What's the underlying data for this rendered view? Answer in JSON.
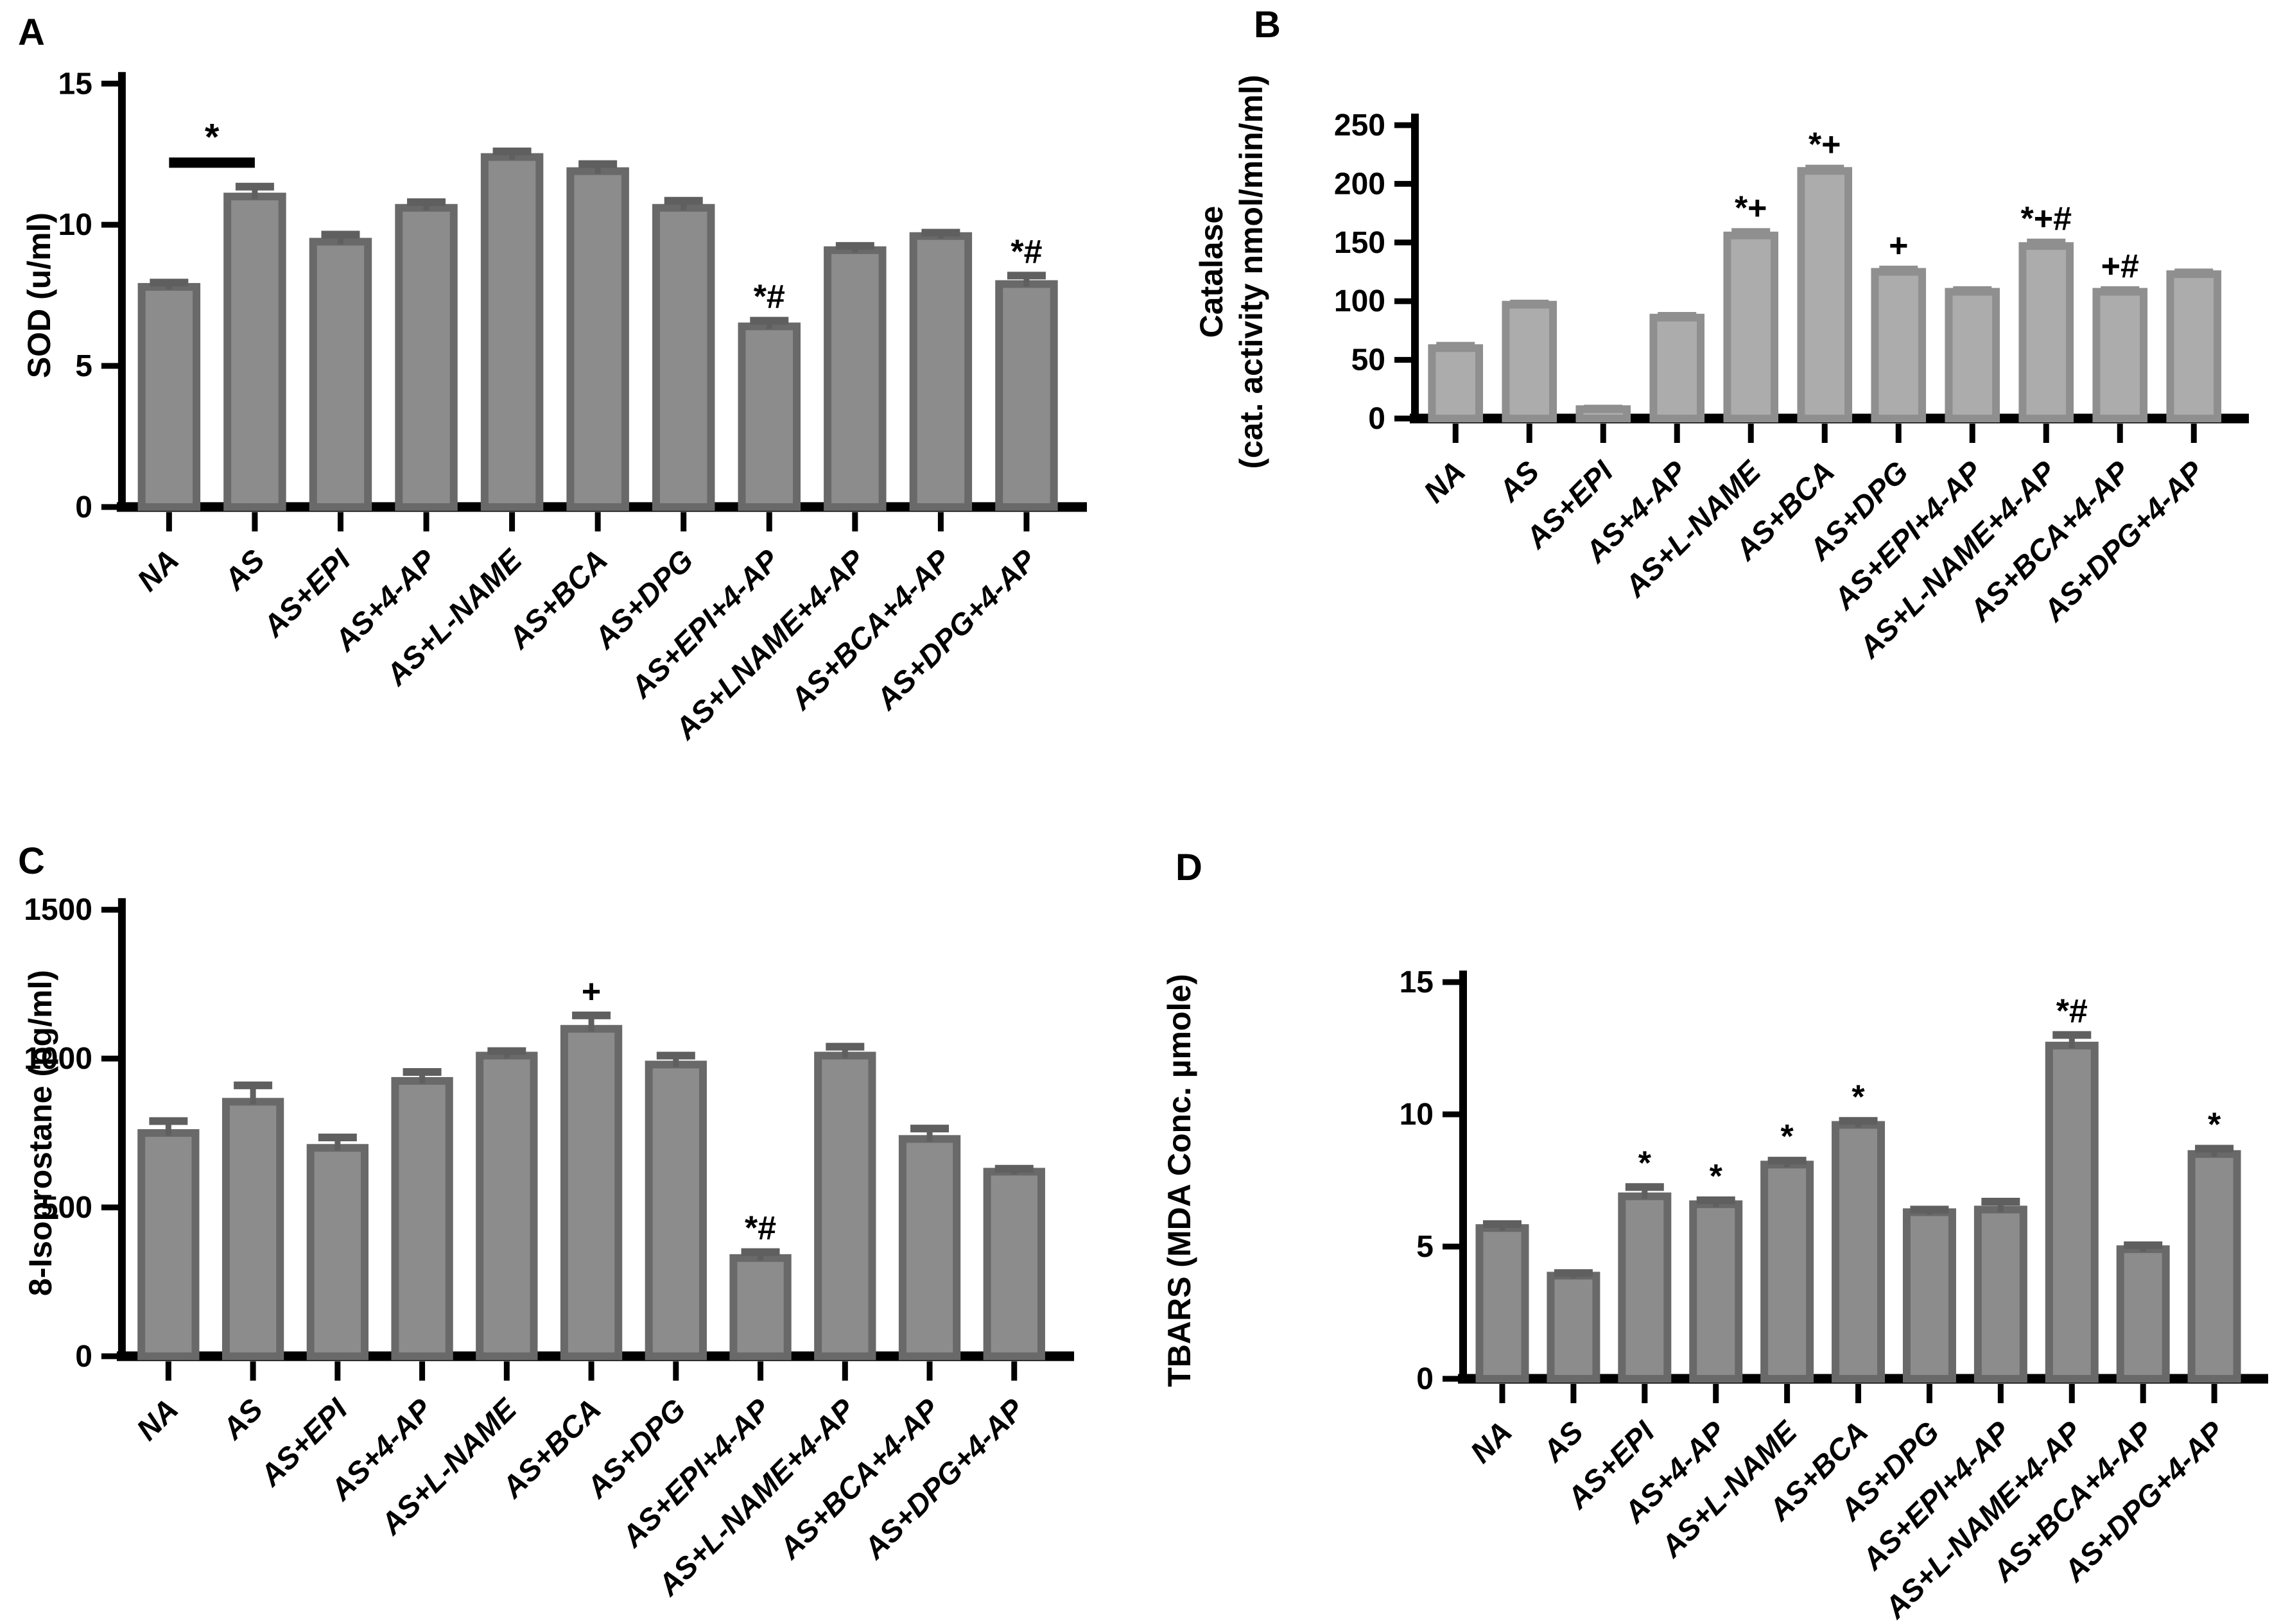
{
  "figure_background": "#ffffff",
  "axis_color": "#000000",
  "chart_data": [
    {
      "type": "bar",
      "panel": "A",
      "ylabel_lines": [
        "SOD (u/ml)"
      ],
      "categories": [
        "NA",
        "AS",
        "AS+EPI",
        "AS+4-AP",
        "AS+L-NAME",
        "AS+BCA",
        "AS+DPG",
        "AS+EPI+4-AP",
        "AS+LNAME+4-AP",
        "AS+BCA+4-AP",
        "AS+DPG+4-AP"
      ],
      "values": [
        7.8,
        11.0,
        9.4,
        10.6,
        12.4,
        11.9,
        10.6,
        6.4,
        9.1,
        9.6,
        7.9
      ],
      "errors": [
        0.15,
        0.35,
        0.25,
        0.2,
        0.2,
        0.25,
        0.25,
        0.2,
        0.15,
        0.12,
        0.3
      ],
      "annotations": [
        "",
        "",
        "",
        "",
        "",
        "",
        "",
        "*#",
        "",
        "",
        "*#"
      ],
      "bracket": {
        "from": 0,
        "to": 1,
        "label": "*",
        "y": 12.2
      },
      "ylim": [
        0,
        15
      ],
      "yticks": [
        0,
        5,
        10,
        15
      ],
      "grid": false,
      "legend": null,
      "bar_color": "#8c8c8c",
      "bar_edge": "#696969",
      "error_color": "#5f5f5f"
    },
    {
      "type": "bar",
      "panel": "B",
      "ylabel_lines": [
        "Catalase",
        "(cat. activity nmol/min/ml)"
      ],
      "categories": [
        "NA",
        "AS",
        "AS+EPI",
        "AS+4-AP",
        "AS+L-NAME",
        "AS+BCA",
        "AS+DPG",
        "AS+EPI+4-AP",
        "AS+L-NAME+4-AP",
        "AS+BCA+4-AP",
        "AS+DPG+4-AP"
      ],
      "values": [
        60,
        97,
        8,
        86,
        156,
        211,
        125,
        108,
        147,
        108,
        123
      ],
      "errors": [
        2,
        1,
        0.5,
        1.5,
        3,
        2,
        2,
        1.5,
        3,
        1.5,
        1.5
      ],
      "annotations": [
        "",
        "",
        "",
        "",
        "*+",
        "*+",
        "+",
        "",
        "*+#",
        "+#",
        ""
      ],
      "bracket": null,
      "ylim": [
        0,
        250
      ],
      "yticks": [
        0,
        50,
        100,
        150,
        200,
        250
      ],
      "grid": false,
      "legend": null,
      "bar_color": "#acacac",
      "bar_edge": "#8f8f8f",
      "error_color": "#8f8f8f"
    },
    {
      "type": "bar",
      "panel": "C",
      "ylabel_lines": [
        "8-Isoprostane (pg/ml)"
      ],
      "categories": [
        "NA",
        "AS",
        "AS+EPI",
        "AS+4-AP",
        "AS+L-NAME",
        "AS+BCA",
        "AS+DPG",
        "AS+EPI+4-AP",
        "AS+L-NAME+4-AP",
        "AS+BCA+4-AP",
        "AS+DPG+4-AP"
      ],
      "values": [
        750,
        855,
        700,
        925,
        1010,
        1100,
        980,
        330,
        1010,
        730,
        620
      ],
      "errors": [
        40,
        55,
        35,
        30,
        15,
        45,
        30,
        20,
        30,
        35,
        10
      ],
      "annotations": [
        "",
        "",
        "",
        "",
        "",
        "+",
        "",
        "*#",
        "",
        "",
        ""
      ],
      "bracket": null,
      "ylim": [
        0,
        1500
      ],
      "yticks": [
        0,
        500,
        1000,
        1500
      ],
      "grid": false,
      "legend": null,
      "bar_color": "#8c8c8c",
      "bar_edge": "#696969",
      "error_color": "#5f5f5f"
    },
    {
      "type": "bar",
      "panel": "D",
      "ylabel_lines": [
        "TBARS (MDA Conc. µmole)"
      ],
      "categories": [
        "NA",
        "AS",
        "AS+EPI",
        "AS+4-AP",
        "AS+L-NAME",
        "AS+BCA",
        "AS+DPG",
        "AS+EPI+4-AP",
        "AS+L-NAME+4-AP",
        "AS+BCA+4-AP",
        "AS+DPG+4-AP"
      ],
      "values": [
        5.7,
        3.9,
        6.9,
        6.6,
        8.1,
        9.6,
        6.3,
        6.4,
        12.6,
        4.9,
        8.5
      ],
      "errors": [
        0.15,
        0.1,
        0.35,
        0.15,
        0.15,
        0.15,
        0.1,
        0.3,
        0.4,
        0.15,
        0.2
      ],
      "annotations": [
        "",
        "",
        "*",
        "*",
        "*",
        "*",
        "",
        "",
        "*#",
        "",
        "*"
      ],
      "bracket": null,
      "ylim": [
        0,
        15
      ],
      "yticks": [
        0,
        5,
        10,
        15
      ],
      "grid": false,
      "legend": null,
      "bar_color": "#8c8c8c",
      "bar_edge": "#696969",
      "error_color": "#5f5f5f"
    }
  ]
}
